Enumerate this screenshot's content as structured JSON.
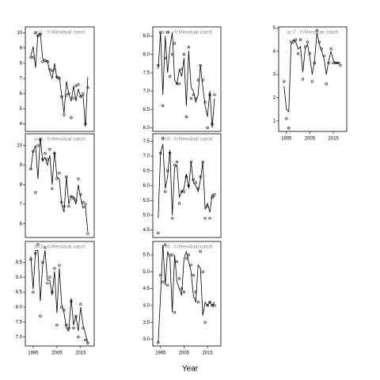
{
  "xlabel": "Year",
  "chart_data": [
    {
      "type": "line",
      "title": "a=1 : f=Residual catch",
      "x": [
        1994,
        1995,
        1996,
        1997,
        1998,
        1999,
        2000,
        2001,
        2002,
        2003,
        2004,
        2005,
        2006,
        2007,
        2008,
        2009,
        2010,
        2011,
        2012,
        2013,
        2014,
        2015,
        2016,
        2017,
        2018
      ],
      "series": [
        {
          "type": "scatter",
          "color": "#000000",
          "values": [
            8.4,
            8.4,
            10.0,
            9.8,
            9.9,
            8.1,
            8.2,
            8.1,
            7.6,
            7.5,
            7.6,
            7.1,
            7.0,
            5.8,
            4.6,
            5.9,
            6.0,
            4.4,
            5.7,
            6.5,
            6.6,
            5.8,
            6.0,
            4.0,
            6.4
          ]
        },
        {
          "type": "line",
          "color": "#000000",
          "values": [
            8.5,
            9.1,
            7.7,
            9.9,
            10.0,
            8.3,
            8.1,
            8.2,
            7.4,
            7.0,
            8.0,
            7.0,
            7.1,
            5.9,
            4.7,
            6.8,
            6.0,
            5.5,
            6.5,
            5.5,
            6.3,
            5.8,
            5.9,
            3.8,
            7.1
          ]
        }
      ],
      "xlim": [
        1991.7,
        2020.7
      ],
      "ylim": [
        3.5,
        10.4
      ],
      "yticks": [
        4,
        5,
        6,
        7,
        8,
        9,
        10
      ]
    },
    {
      "type": "line",
      "title": "a=2 : f=Residual catch",
      "x": [
        1994,
        1995,
        1996,
        1997,
        1998,
        1999,
        2000,
        2001,
        2002,
        2003,
        2004,
        2005,
        2006,
        2007,
        2008,
        2009,
        2010,
        2011,
        2012,
        2013,
        2014,
        2015,
        2016,
        2017,
        2018
      ],
      "series": [
        {
          "type": "scatter",
          "color": "#000000",
          "values": [
            8.8,
            9.7,
            7.6,
            10.0,
            10.3,
            9.3,
            9.6,
            9.3,
            9.8,
            7.8,
            9.6,
            8.3,
            8.6,
            7.1,
            6.9,
            8.4,
            6.9,
            7.4,
            7.3,
            7.2,
            8.3,
            7.5,
            7.1,
            7.0,
            5.5
          ]
        },
        {
          "type": "line",
          "color": "#000000",
          "values": [
            8.8,
            9.7,
            10.0,
            8.3,
            10.4,
            9.2,
            9.4,
            9.0,
            9.5,
            8.0,
            9.7,
            8.4,
            8.3,
            7.0,
            6.6,
            8.4,
            7.0,
            7.4,
            7.4,
            7.0,
            8.0,
            7.3,
            6.8,
            6.9,
            5.6
          ]
        }
      ],
      "xlim": [
        1991.7,
        2020.7
      ],
      "ylim": [
        5.3,
        10.6
      ],
      "yticks": [
        6,
        7,
        8,
        9,
        10
      ]
    },
    {
      "type": "line",
      "title": "a=3 : f=Residual catch",
      "x": [
        1994,
        1995,
        1996,
        1997,
        1998,
        1999,
        2000,
        2001,
        2002,
        2003,
        2004,
        2005,
        2006,
        2007,
        2008,
        2009,
        2010,
        2011,
        2012,
        2013,
        2014,
        2015,
        2016,
        2017,
        2018
      ],
      "series": [
        {
          "type": "scatter",
          "color": "#000000",
          "values": [
            9.6,
            8.5,
            9.8,
            10.1,
            7.7,
            9.5,
            10.0,
            8.8,
            9.0,
            8.5,
            9.3,
            7.4,
            9.4,
            8.0,
            7.9,
            7.4,
            7.3,
            8.2,
            7.3,
            7.7,
            7.0,
            8.1,
            7.3,
            6.9,
            6.8
          ]
        },
        {
          "type": "line",
          "color": "#000000",
          "values": [
            9.7,
            8.6,
            9.9,
            9.9,
            8.2,
            9.4,
            9.9,
            8.9,
            8.9,
            8.4,
            9.2,
            7.8,
            9.3,
            8.1,
            7.8,
            7.3,
            7.2,
            8.3,
            7.4,
            7.7,
            7.2,
            8.0,
            7.4,
            7.1,
            6.8
          ]
        }
      ],
      "xlim": [
        1991.7,
        2020.7
      ],
      "ylim": [
        6.7,
        10.2
      ],
      "yticks": [
        {
          "value": 7,
          "label": "7.0"
        },
        7.5,
        {
          "value": 8,
          "label": "8.0"
        },
        8.5,
        {
          "value": 9,
          "label": "9.0"
        },
        9.5
      ],
      "xticks": [
        1995,
        2005,
        2015
      ]
    },
    {
      "type": "line",
      "title": "a=4 : f=Residual catch",
      "x": [
        1994,
        1995,
        1996,
        1997,
        1998,
        1999,
        2000,
        2001,
        2002,
        2003,
        2004,
        2005,
        2006,
        2007,
        2008,
        2009,
        2010,
        2011,
        2012,
        2013,
        2014,
        2015,
        2016,
        2017,
        2018
      ],
      "series": [
        {
          "type": "scatter",
          "color": "#000000",
          "values": [
            7.7,
            8.6,
            6.6,
            7.9,
            8.6,
            7.4,
            8.0,
            8.3,
            7.2,
            7.2,
            7.6,
            8.0,
            6.3,
            8.2,
            6.8,
            6.9,
            6.8,
            7.3,
            7.7,
            7.3,
            6.7,
            6.0,
            6.9,
            6.1,
            6.9
          ]
        },
        {
          "type": "line",
          "color": "#000000",
          "values": [
            7.6,
            8.6,
            6.9,
            8.5,
            7.5,
            8.2,
            8.6,
            7.3,
            7.2,
            7.6,
            7.4,
            7.9,
            6.6,
            8.1,
            7.1,
            7.0,
            6.7,
            6.9,
            7.7,
            7.1,
            6.6,
            6.3,
            7.0,
            6.0,
            6.8
          ]
        }
      ],
      "xlim": [
        1991.7,
        2020.7
      ],
      "ylim": [
        5.9,
        8.75
      ],
      "yticks": [
        {
          "value": 6,
          "label": "6.0"
        },
        6.5,
        {
          "value": 7,
          "label": "7.0"
        },
        7.5,
        {
          "value": 8,
          "label": "8.0"
        },
        8.5
      ]
    },
    {
      "type": "line",
      "title": "a=5 : f=Residual catch",
      "x": [
        1994,
        1995,
        1996,
        1997,
        1998,
        1999,
        2000,
        2001,
        2002,
        2003,
        2004,
        2005,
        2006,
        2007,
        2008,
        2009,
        2010,
        2011,
        2012,
        2013,
        2014,
        2015,
        2016,
        2017,
        2018
      ],
      "series": [
        {
          "type": "scatter",
          "color": "#000000",
          "values": [
            4.4,
            7.1,
            7.6,
            5.8,
            6.5,
            7.1,
            4.9,
            6.7,
            6.8,
            5.4,
            5.8,
            5.8,
            6.3,
            6.0,
            6.8,
            6.2,
            6.1,
            5.9,
            6.3,
            6.8,
            4.9,
            5.3,
            4.9,
            5.6,
            5.7
          ]
        },
        {
          "type": "line",
          "color": "#000000",
          "values": [
            4.9,
            7.1,
            7.4,
            5.9,
            6.3,
            7.2,
            5.0,
            6.6,
            6.7,
            5.6,
            5.8,
            5.9,
            6.4,
            5.9,
            6.8,
            6.1,
            6.0,
            5.8,
            6.2,
            6.8,
            5.2,
            5.4,
            5.1,
            5.7,
            5.6
          ]
        }
      ],
      "xlim": [
        1991.7,
        2020.7
      ],
      "ylim": [
        4.25,
        7.75
      ],
      "yticks": [
        4.5,
        {
          "value": 5,
          "label": "5.0"
        },
        5.5,
        {
          "value": 6,
          "label": "6.0"
        },
        6.5,
        {
          "value": 7,
          "label": "7.0"
        },
        7.5
      ]
    },
    {
      "type": "line",
      "title": "a=6 : f=Residual catch",
      "x": [
        1994,
        1995,
        1996,
        1997,
        1998,
        1999,
        2000,
        2001,
        2002,
        2003,
        2004,
        2005,
        2006,
        2007,
        2008,
        2009,
        2010,
        2011,
        2012,
        2013,
        2014,
        2015,
        2016,
        2017,
        2018
      ],
      "series": [
        {
          "type": "scatter",
          "color": "#000000",
          "values": [
            2.9,
            4.9,
            4.7,
            5.8,
            4.6,
            5.5,
            5.5,
            3.8,
            5.3,
            4.8,
            4.5,
            4.4,
            5.4,
            5.5,
            5.2,
            4.9,
            4.4,
            4.1,
            5.6,
            5.0,
            3.5,
            4.0,
            4.1,
            4.0,
            4.0
          ]
        },
        {
          "type": "line",
          "color": "#000000",
          "values": [
            2.9,
            4.3,
            5.8,
            4.6,
            5.6,
            5.4,
            3.8,
            5.5,
            4.7,
            4.5,
            4.3,
            5.4,
            5.6,
            5.3,
            5.0,
            4.3,
            4.1,
            5.2,
            5.1,
            3.7,
            4.1,
            4.0,
            4.1,
            4.0,
            4.1
          ]
        }
      ],
      "xlim": [
        1991.7,
        2020.7
      ],
      "ylim": [
        2.8,
        5.9
      ],
      "yticks": [
        {
          "value": 3,
          "label": "3.0"
        },
        3.5,
        {
          "value": 4,
          "label": "4.0"
        },
        4.5,
        {
          "value": 5,
          "label": "5.0"
        },
        5.5
      ],
      "xticks": [
        1995,
        2005,
        2015
      ]
    },
    {
      "type": "line",
      "title": "a=7 : f=Residual catch",
      "x": [
        1994,
        1995,
        1996,
        1997,
        1998,
        1999,
        2000,
        2001,
        2002,
        2003,
        2004,
        2005,
        2006,
        2007,
        2008,
        2009,
        2010,
        2011,
        2012,
        2013,
        2014,
        2015,
        2016,
        2017,
        2018
      ],
      "series": [
        {
          "type": "scatter",
          "color": "#000000",
          "values": [
            2.7,
            1.1,
            0.7,
            4.4,
            4.4,
            4.5,
            3.9,
            4.5,
            2.8,
            4.2,
            4.4,
            3.9,
            2.7,
            3.5,
            4.9,
            4.4,
            4.1,
            3.8,
            2.6,
            3.5,
            4.1,
            3.5,
            3.5,
            3.5,
            3.4
          ]
        },
        {
          "type": "line",
          "color": "#000000",
          "values": [
            2.5,
            1.5,
            1.4,
            4.3,
            4.5,
            4.4,
            4.1,
            4.2,
            3.1,
            4.1,
            4.3,
            3.7,
            3.0,
            3.6,
            4.8,
            4.3,
            4.0,
            3.7,
            3.0,
            3.6,
            4.0,
            3.6,
            3.5,
            3.5,
            3.5
          ]
        }
      ],
      "xlim": [
        1991.7,
        2020.7
      ],
      "ylim": [
        0.55,
        5.05
      ],
      "yticks": [
        1,
        2,
        3,
        4,
        5
      ],
      "xticks": [
        1995,
        2005,
        2015
      ]
    }
  ]
}
